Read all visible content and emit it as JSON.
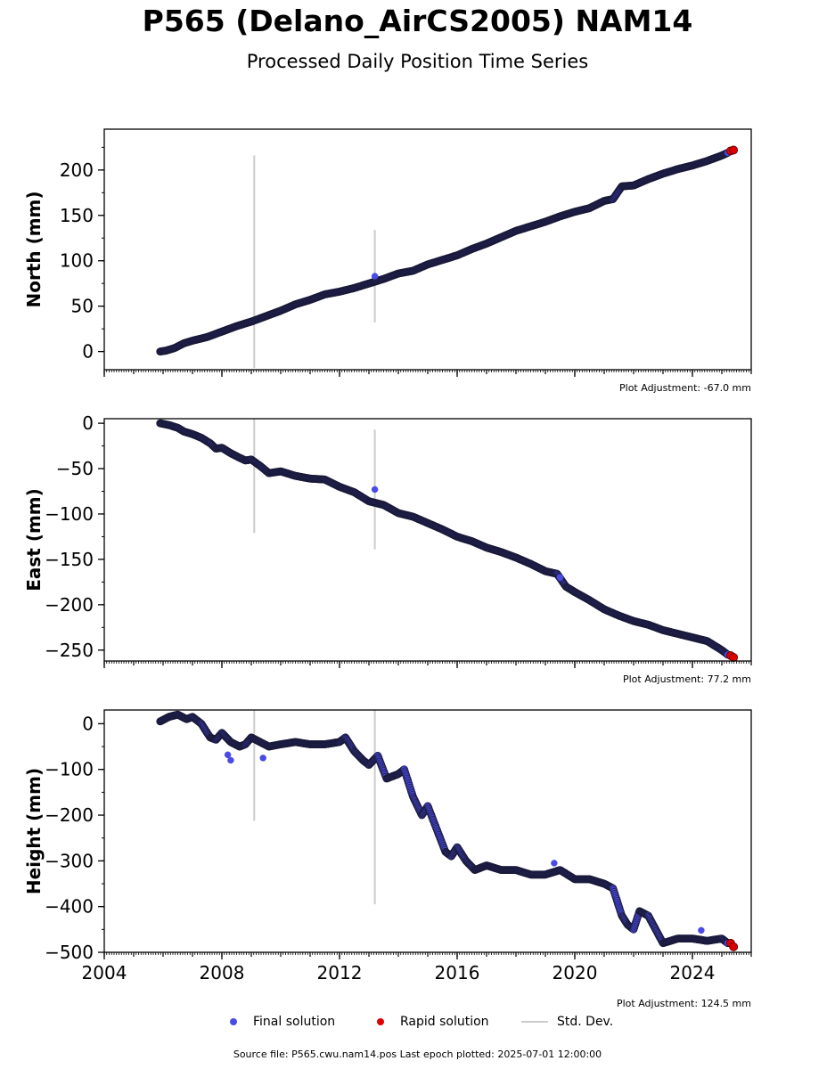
{
  "header": {
    "title": "P565 (Delano_AirCS2005) NAM14",
    "subtitle": "Processed Daily Position Time Series"
  },
  "chart_data": {
    "type": "scatter",
    "x_range": [
      2004,
      2026
    ],
    "x_ticks": [
      2004,
      2008,
      2012,
      2016,
      2020,
      2024
    ],
    "x_tick_labels": [
      "2004",
      "2008",
      "2012",
      "2016",
      "2020",
      "2024"
    ],
    "colors": {
      "final_fill": "#4a4ae6",
      "final_edge": "#1a1a3a",
      "rapid_fill": "#dd0000",
      "stddev": "#cccccc"
    },
    "panels": [
      {
        "ylabel": "North (mm)",
        "ylim": [
          -20,
          245
        ],
        "y_ticks": [
          0,
          50,
          100,
          150,
          200
        ],
        "y_tick_labels": [
          "0",
          "50",
          "100",
          "150",
          "200"
        ],
        "adjustment": "Plot Adjustment: -67.0 mm",
        "final_solution": {
          "x": [
            2005.9,
            2006.1,
            2006.4,
            2006.7,
            2007.0,
            2007.5,
            2008.0,
            2008.5,
            2009.0,
            2009.5,
            2010.0,
            2010.5,
            2011.0,
            2011.5,
            2012.0,
            2012.5,
            2013.0,
            2013.5,
            2014.0,
            2014.5,
            2015.0,
            2015.5,
            2016.0,
            2016.5,
            2017.0,
            2017.5,
            2018.0,
            2018.5,
            2019.0,
            2019.5,
            2020.0,
            2020.5,
            2021.0,
            2021.3,
            2021.6,
            2022.0,
            2022.5,
            2023.0,
            2023.5,
            2024.0,
            2024.5,
            2025.0,
            2025.2
          ],
          "y": [
            0,
            1,
            4,
            9,
            12,
            16,
            22,
            28,
            33,
            39,
            45,
            52,
            57,
            63,
            66,
            70,
            75,
            80,
            86,
            89,
            96,
            101,
            106,
            113,
            119,
            126,
            133,
            138,
            143,
            149,
            154,
            158,
            166,
            168,
            182,
            183,
            190,
            196,
            201,
            205,
            210,
            216,
            219
          ]
        },
        "outliers": {
          "x": [
            2013.2
          ],
          "y": [
            83
          ]
        },
        "rapid_solution": {
          "x": [
            2025.3,
            2025.4
          ],
          "y": [
            221,
            222
          ]
        },
        "std_dev": [
          {
            "x": 2009.1,
            "low": -18,
            "high": 216
          },
          {
            "x": 2013.2,
            "low": 32,
            "high": 134
          }
        ]
      },
      {
        "ylabel": "East (mm)",
        "ylim": [
          -262,
          5
        ],
        "y_ticks": [
          0,
          -50,
          -100,
          -150,
          -200,
          -250
        ],
        "y_tick_labels": [
          "0",
          "−50",
          "−100",
          "−150",
          "−200",
          "−250"
        ],
        "adjustment": "Plot Adjustment: 77.2 mm",
        "final_solution": {
          "x": [
            2005.9,
            2006.2,
            2006.5,
            2006.7,
            2007.0,
            2007.3,
            2007.6,
            2007.8,
            2008.0,
            2008.3,
            2008.6,
            2008.8,
            2009.0,
            2009.3,
            2009.6,
            2010.0,
            2010.5,
            2011.0,
            2011.5,
            2012.0,
            2012.5,
            2013.0,
            2013.5,
            2014.0,
            2014.5,
            2015.0,
            2015.5,
            2016.0,
            2016.5,
            2017.0,
            2017.5,
            2018.0,
            2018.5,
            2019.0,
            2019.4,
            2019.7,
            2020.0,
            2020.5,
            2021.0,
            2021.5,
            2022.0,
            2022.5,
            2023.0,
            2023.5,
            2024.0,
            2024.5,
            2025.0,
            2025.2
          ],
          "y": [
            0,
            -2,
            -5,
            -9,
            -12,
            -16,
            -22,
            -28,
            -27,
            -33,
            -38,
            -41,
            -40,
            -47,
            -55,
            -53,
            -58,
            -61,
            -62,
            -70,
            -76,
            -86,
            -90,
            -99,
            -103,
            -110,
            -117,
            -125,
            -130,
            -137,
            -142,
            -148,
            -155,
            -163,
            -166,
            -180,
            -186,
            -195,
            -205,
            -212,
            -218,
            -222,
            -228,
            -232,
            -236,
            -240,
            -250,
            -255
          ]
        },
        "outliers": {
          "x": [
            2013.2,
            2019.5
          ],
          "y": [
            -73,
            -170
          ]
        },
        "rapid_solution": {
          "x": [
            2025.3,
            2025.4
          ],
          "y": [
            -256,
            -258
          ]
        },
        "std_dev": [
          {
            "x": 2009.1,
            "low": -121,
            "high": 5
          },
          {
            "x": 2013.2,
            "low": -139,
            "high": -7
          }
        ]
      },
      {
        "ylabel": "Height (mm)",
        "ylim": [
          -500,
          30
        ],
        "y_ticks": [
          0,
          -100,
          -200,
          -300,
          -400,
          -500
        ],
        "y_tick_labels": [
          "0",
          "−100",
          "−200",
          "−300",
          "−400",
          "−500"
        ],
        "adjustment": "Plot Adjustment: 124.5 mm",
        "final_solution": {
          "x": [
            2005.9,
            2006.2,
            2006.5,
            2006.8,
            2007.0,
            2007.3,
            2007.6,
            2007.8,
            2008.0,
            2008.3,
            2008.6,
            2008.8,
            2009.0,
            2009.3,
            2009.6,
            2010.0,
            2010.5,
            2011.0,
            2011.5,
            2012.0,
            2012.2,
            2012.5,
            2012.8,
            2013.0,
            2013.3,
            2013.6,
            2014.0,
            2014.2,
            2014.5,
            2014.8,
            2015.0,
            2015.3,
            2015.6,
            2015.8,
            2016.0,
            2016.3,
            2016.6,
            2017.0,
            2017.5,
            2018.0,
            2018.5,
            2019.0,
            2019.5,
            2020.0,
            2020.5,
            2021.0,
            2021.3,
            2021.6,
            2021.8,
            2022.0,
            2022.2,
            2022.5,
            2023.0,
            2023.5,
            2024.0,
            2024.5,
            2025.0,
            2025.2
          ],
          "y": [
            5,
            15,
            20,
            10,
            15,
            0,
            -30,
            -35,
            -20,
            -40,
            -50,
            -45,
            -30,
            -40,
            -50,
            -45,
            -40,
            -45,
            -45,
            -40,
            -30,
            -60,
            -80,
            -90,
            -70,
            -120,
            -110,
            -100,
            -160,
            -200,
            -180,
            -230,
            -280,
            -290,
            -270,
            -300,
            -320,
            -310,
            -320,
            -320,
            -330,
            -330,
            -320,
            -340,
            -340,
            -350,
            -360,
            -420,
            -440,
            -450,
            -410,
            -420,
            -480,
            -470,
            -470,
            -475,
            -470,
            -480
          ]
        },
        "outliers": {
          "x": [
            2008.2,
            2008.3,
            2009.4,
            2019.3,
            2024.3
          ],
          "y": [
            -68,
            -80,
            -75,
            -305,
            -452
          ]
        },
        "rapid_solution": {
          "x": [
            2025.3,
            2025.4
          ],
          "y": [
            -480,
            -488
          ]
        },
        "std_dev": [
          {
            "x": 2009.1,
            "low": -212,
            "high": 30
          },
          {
            "x": 2013.2,
            "low": -395,
            "high": 30
          }
        ]
      }
    ],
    "legend": [
      {
        "label": "Final solution",
        "type": "dot",
        "color": "#4a4ae6"
      },
      {
        "label": "Rapid solution",
        "type": "dot",
        "color": "#dd0000"
      },
      {
        "label": "Std. Dev.",
        "type": "line",
        "color": "#cccccc"
      }
    ]
  },
  "footer": {
    "text": "Source file: P565.cwu.nam14.pos  Last epoch plotted: 2025-07-01 12:00:00"
  }
}
